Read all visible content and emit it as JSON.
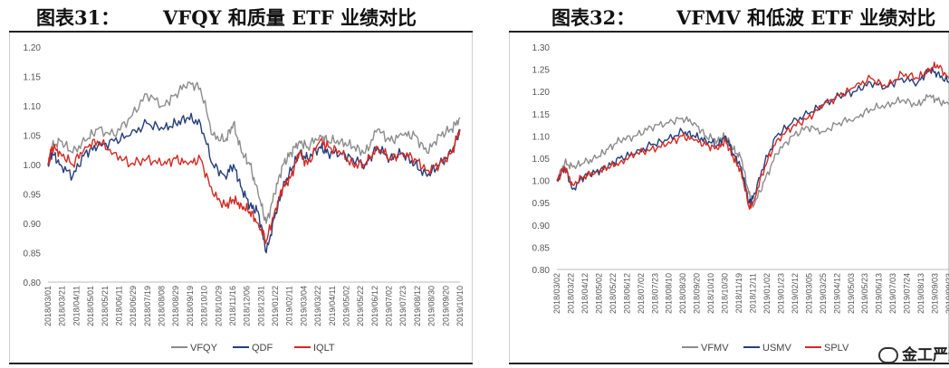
{
  "charts": [
    {
      "fig_label": "图表31：",
      "title_text": "VFQY 和质量 ETF 业绩对比",
      "chart_data": {
        "type": "line",
        "ylim": [
          0.8,
          1.2
        ],
        "yticks": [
          "1.20",
          "1.15",
          "1.10",
          "1.05",
          "1.00",
          "0.95",
          "0.90",
          "0.85",
          "0.80"
        ],
        "xticks": [
          "2018/03/01",
          "2018/03/21",
          "2018/04/11",
          "2018/05/01",
          "2018/05/21",
          "2018/06/11",
          "2018/06/29",
          "2018/07/19",
          "2018/08/08",
          "2018/08/29",
          "2018/09/19",
          "2018/10/10",
          "2018/10/29",
          "2018/11/16",
          "2018/12/06",
          "2018/12/31",
          "2019/01/22",
          "2019/02/11",
          "2019/03/04",
          "2019/03/22",
          "2019/04/11",
          "2019/05/02",
          "2019/05/22",
          "2019/06/12",
          "2019/07/02",
          "2019/07/23",
          "2019/08/12",
          "2019/08/30",
          "2019/09/20",
          "2019/10/10"
        ],
        "grid": false,
        "legend_placement": "bottom",
        "x": [
          0,
          0.01,
          0.03,
          0.06,
          0.09,
          0.12,
          0.16,
          0.2,
          0.24,
          0.28,
          0.31,
          0.34,
          0.37,
          0.4,
          0.43,
          0.45,
          0.47,
          0.49,
          0.51,
          0.53,
          0.55,
          0.57,
          0.59,
          0.61,
          0.63,
          0.66,
          0.68,
          0.71,
          0.74,
          0.77,
          0.8,
          0.83,
          0.86,
          0.89,
          0.92,
          0.95,
          0.98,
          1.0
        ],
        "series": [
          {
            "name": "VFQY",
            "color": "#8c8c8c",
            "values": [
              1.0,
              1.03,
              1.04,
              1.02,
              1.04,
              1.06,
              1.05,
              1.08,
              1.12,
              1.1,
              1.12,
              1.14,
              1.13,
              1.05,
              1.04,
              1.07,
              1.02,
              1.0,
              0.95,
              0.9,
              0.95,
              1.0,
              1.02,
              1.04,
              1.03,
              1.05,
              1.04,
              1.04,
              1.03,
              1.02,
              1.06,
              1.04,
              1.05,
              1.05,
              1.02,
              1.05,
              1.06,
              1.08
            ]
          },
          {
            "name": "QDF",
            "color": "#253f7a",
            "values": [
              1.0,
              1.02,
              1.0,
              0.98,
              1.02,
              1.03,
              1.04,
              1.05,
              1.07,
              1.06,
              1.07,
              1.08,
              1.07,
              1.0,
              0.98,
              1.0,
              0.96,
              0.93,
              0.92,
              0.85,
              0.91,
              0.96,
              0.99,
              1.02,
              1.01,
              1.03,
              1.02,
              1.02,
              1.01,
              1.0,
              1.03,
              1.01,
              1.02,
              1.0,
              0.98,
              1.0,
              1.02,
              1.06
            ]
          },
          {
            "name": "IQLT",
            "color": "#d42a24",
            "values": [
              1.0,
              1.03,
              1.02,
              1.0,
              1.03,
              1.04,
              1.02,
              1.0,
              1.01,
              1.0,
              1.01,
              1.0,
              1.01,
              0.95,
              0.93,
              0.94,
              0.93,
              0.92,
              0.9,
              0.87,
              0.92,
              0.96,
              0.98,
              1.02,
              1.0,
              1.04,
              1.03,
              1.02,
              1.0,
              1.0,
              1.03,
              1.01,
              1.02,
              1.01,
              0.99,
              1.0,
              1.02,
              1.06
            ]
          }
        ]
      }
    },
    {
      "fig_label": "图表32：",
      "title_text": "VFMV 和低波 ETF 业绩对比",
      "chart_data": {
        "type": "line",
        "ylim": [
          0.8,
          1.3
        ],
        "yticks": [
          "1.30",
          "1.25",
          "1.20",
          "1.15",
          "1.10",
          "1.05",
          "1.00",
          "0.95",
          "0.90",
          "0.85",
          "0.80"
        ],
        "xticks": [
          "2018/03/02",
          "2018/03/22",
          "2018/04/12",
          "2018/05/02",
          "2018/05/22",
          "2018/06/12",
          "2018/07/02",
          "2018/07/23",
          "2018/08/10",
          "2018/08/30",
          "2018/09/20",
          "2018/10/10",
          "2018/10/30",
          "2018/11/19",
          "2018/12/11",
          "2019/01/02",
          "2019/01/23",
          "2019/02/12",
          "2019/03/05",
          "2019/03/25",
          "2019/04/12",
          "2019/05/03",
          "2019/05/23",
          "2019/06/13",
          "2019/07/03",
          "2019/07/24",
          "2019/08/13",
          "2019/09/03",
          "2019/09/23"
        ],
        "grid": false,
        "legend_placement": "bottom",
        "x": [
          0,
          0.02,
          0.04,
          0.07,
          0.1,
          0.13,
          0.16,
          0.2,
          0.24,
          0.28,
          0.32,
          0.35,
          0.38,
          0.41,
          0.43,
          0.45,
          0.47,
          0.49,
          0.5,
          0.53,
          0.56,
          0.6,
          0.64,
          0.68,
          0.72,
          0.76,
          0.8,
          0.84,
          0.88,
          0.92,
          0.95,
          0.97,
          1.0
        ],
        "series": [
          {
            "name": "VFMV",
            "color": "#8c8c8c",
            "values": [
              1.0,
              1.04,
              1.03,
              1.04,
              1.05,
              1.07,
              1.09,
              1.1,
              1.12,
              1.13,
              1.14,
              1.13,
              1.1,
              1.09,
              1.1,
              1.07,
              1.05,
              0.97,
              0.94,
              1.0,
              1.06,
              1.1,
              1.12,
              1.11,
              1.13,
              1.14,
              1.16,
              1.17,
              1.18,
              1.17,
              1.19,
              1.18,
              1.17
            ]
          },
          {
            "name": "USMV",
            "color": "#253f7a",
            "values": [
              1.0,
              1.03,
              0.98,
              1.01,
              1.02,
              1.03,
              1.05,
              1.06,
              1.08,
              1.09,
              1.11,
              1.1,
              1.09,
              1.08,
              1.1,
              1.06,
              1.03,
              0.95,
              0.96,
              1.04,
              1.1,
              1.13,
              1.15,
              1.17,
              1.19,
              1.2,
              1.22,
              1.21,
              1.23,
              1.22,
              1.25,
              1.24,
              1.22
            ]
          },
          {
            "name": "SPLV",
            "color": "#d42a24",
            "values": [
              1.0,
              1.03,
              0.99,
              1.01,
              1.02,
              1.03,
              1.04,
              1.06,
              1.07,
              1.08,
              1.1,
              1.09,
              1.08,
              1.07,
              1.09,
              1.05,
              1.02,
              0.94,
              0.95,
              1.03,
              1.09,
              1.12,
              1.14,
              1.17,
              1.19,
              1.21,
              1.23,
              1.21,
              1.24,
              1.23,
              1.25,
              1.26,
              1.23
            ]
          }
        ]
      }
    }
  ],
  "watermark": "金工严选"
}
